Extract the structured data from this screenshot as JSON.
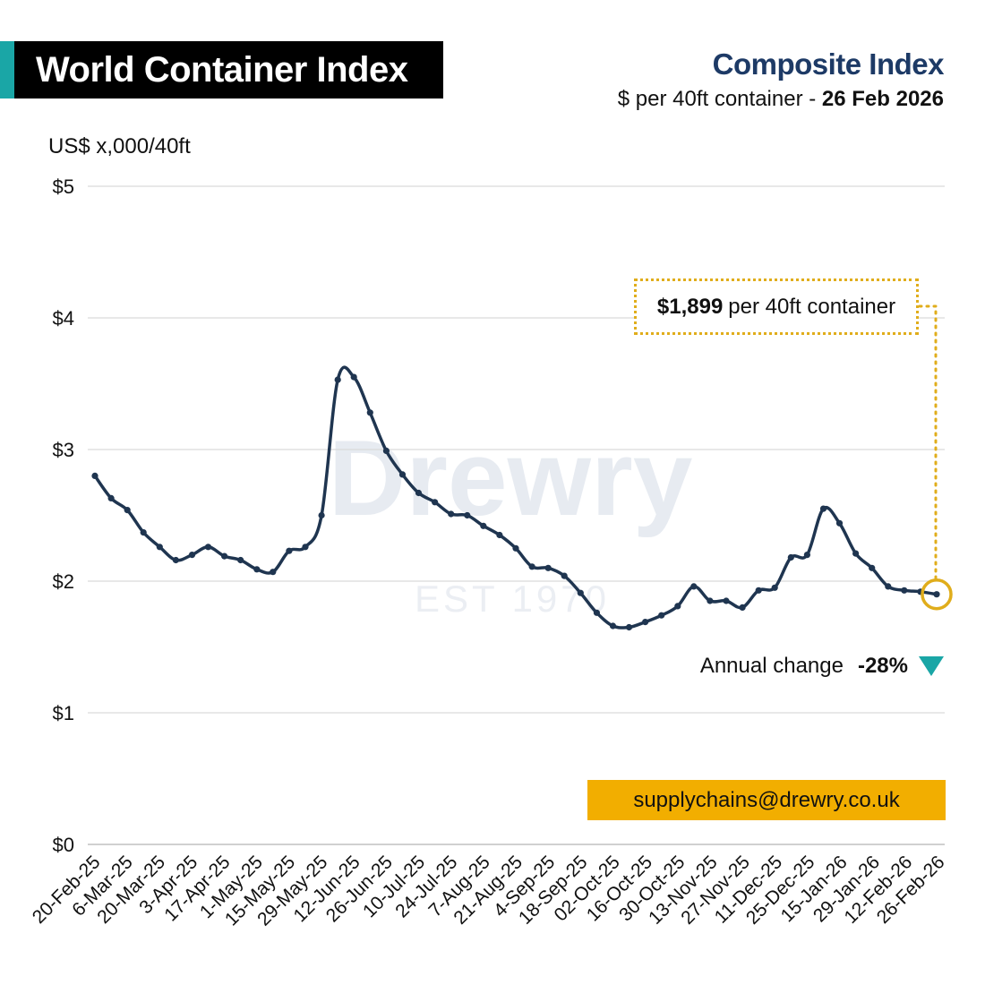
{
  "header": {
    "title": "World Container Index",
    "subtitle": "Composite Index",
    "sub_prefix": "$ per 40ft container - ",
    "sub_date": "26 Feb 2026",
    "unit": "US$ x,000/40ft"
  },
  "annotation": {
    "value": "$1,899",
    "text": "per 40ft container",
    "annual_label": "Annual change",
    "annual_value": "-28%"
  },
  "watermark": {
    "brand": "Drewry",
    "est": "EST 1970"
  },
  "contact": {
    "email": "supplychains@drewry.co.uk"
  },
  "colors": {
    "line": "#1f3550",
    "accent": "#e0ad1b",
    "teal": "#1aa6a6",
    "email_bg": "#f2ae00",
    "grid": "#d9d9d9",
    "title_navy": "#1d3a66"
  },
  "chart_data": {
    "type": "line",
    "ylim": [
      0,
      5
    ],
    "yticks": [
      {
        "value": 0,
        "label": "$0"
      },
      {
        "value": 1,
        "label": "$1"
      },
      {
        "value": 2,
        "label": "$2"
      },
      {
        "value": 3,
        "label": "$3"
      },
      {
        "value": 4,
        "label": "$4"
      },
      {
        "value": 5,
        "label": "$5"
      }
    ],
    "xlabels": [
      "20-Feb-25",
      "6-Mar-25",
      "20-Mar-25",
      "3-Apr-25",
      "17-Apr-25",
      "1-May-25",
      "15-May-25",
      "29-May-25",
      "12-Jun-25",
      "26-Jun-25",
      "10-Jul-25",
      "24-Jul-25",
      "7-Aug-25",
      "21-Aug-25",
      "4-Sep-25",
      "18-Sep-25",
      "02-Oct-25",
      "16-Oct-25",
      "30-Oct-25",
      "13-Nov-25",
      "27-Nov-25",
      "11-Dec-25",
      "25-Dec-25",
      "15-Jan-26",
      "29-Jan-26",
      "12-Feb-26",
      "26-Feb-26"
    ],
    "values": [
      2.8,
      2.63,
      2.54,
      2.37,
      2.26,
      2.16,
      2.2,
      2.26,
      2.19,
      2.16,
      2.09,
      2.07,
      2.23,
      2.26,
      2.5,
      3.53,
      3.55,
      3.28,
      2.99,
      2.81,
      2.67,
      2.6,
      2.51,
      2.5,
      2.42,
      2.35,
      2.25,
      2.11,
      2.1,
      2.04,
      1.91,
      1.76,
      1.66,
      1.65,
      1.69,
      1.74,
      1.81,
      1.96,
      1.85,
      1.85,
      1.8,
      1.93,
      1.95,
      2.18,
      2.2,
      2.55,
      2.44,
      2.21,
      2.1,
      1.96,
      1.93,
      1.92,
      1.9
    ],
    "grid": true
  }
}
